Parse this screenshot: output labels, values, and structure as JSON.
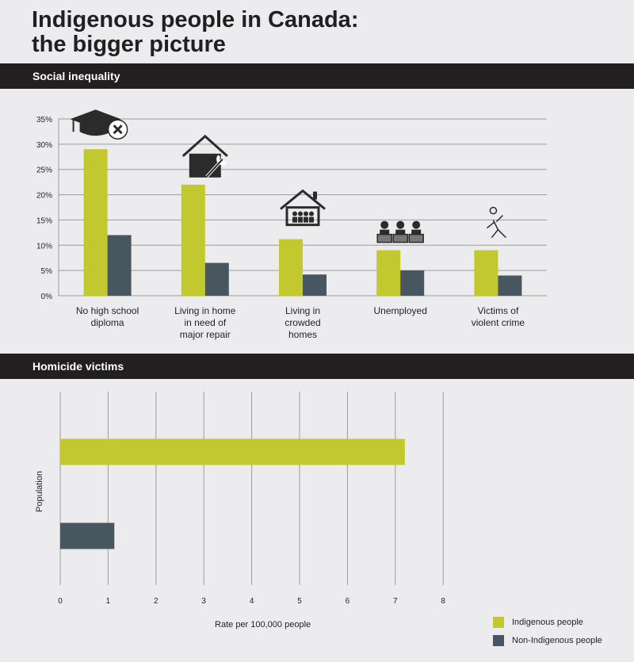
{
  "title": {
    "line1": "Indigenous people in Canada:",
    "line2": "the bigger picture"
  },
  "colors": {
    "indigenous": "#c2c92f",
    "non_indigenous": "#48575f",
    "grid": "#9b9b9b",
    "band": "#231f20"
  },
  "sections": {
    "social": "Social inequality",
    "homicide": "Homicide victims"
  },
  "legend": {
    "indigenous": "Indigenous people",
    "non_indigenous": "Non-Indigenous people"
  },
  "chart_data": [
    {
      "type": "bar",
      "title": "Social inequality",
      "categories": [
        [
          "No high school",
          "diploma"
        ],
        [
          "Living in home",
          "in need of",
          "major repair"
        ],
        [
          "Living in",
          "crowded",
          "homes"
        ],
        [
          "Unemployed"
        ],
        [
          "Victims of",
          "violent crime"
        ]
      ],
      "icons": [
        "graduation-cap-x-icon",
        "house-wrench-icon",
        "crowded-house-icon",
        "unemployed-people-icon",
        "victim-outline-icon"
      ],
      "series": [
        {
          "name": "Indigenous people",
          "values": [
            29,
            22,
            11.2,
            9,
            9
          ]
        },
        {
          "name": "Non-Indigenous people",
          "values": [
            12,
            6.5,
            4.2,
            5,
            4
          ]
        }
      ],
      "ylim": [
        0,
        35
      ],
      "yticks": [
        "0%",
        "5%",
        "10%",
        "15%",
        "20%",
        "25%",
        "30%",
        "35%"
      ],
      "grid": true
    },
    {
      "type": "bar",
      "orientation": "horizontal",
      "title": "Homicide victims",
      "ylabel": "Population",
      "xlabel": "Rate per 100,000 people",
      "series": [
        {
          "name": "Indigenous people",
          "values": [
            7.2
          ]
        },
        {
          "name": "Non-Indigenous people",
          "values": [
            1.13
          ]
        }
      ],
      "xlim": [
        0,
        8
      ],
      "xticks": [
        "0",
        "1",
        "2",
        "3",
        "4",
        "5",
        "6",
        "7",
        "8"
      ],
      "grid": true,
      "legend": "bottom-right"
    }
  ]
}
